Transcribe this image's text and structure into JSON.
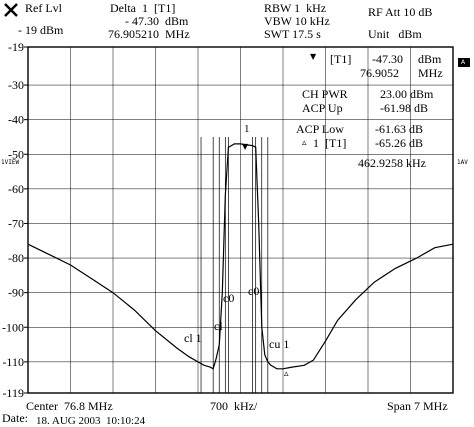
{
  "header": {
    "ref_lvl_label": "Ref Lvl",
    "ref_lvl_value": "- 19 dBm",
    "delta_label": "Delta  1  [T1]",
    "delta_level": "- 47.30  dBm",
    "delta_freq": "76.905210  MHz",
    "rbw": "RBW 1  kHz",
    "vbw": "VBW 10 kHz",
    "swt": "SWT 17.5 s",
    "rf_att": "RF Att 10 dB",
    "unit": "Unit   dBm"
  },
  "marker_panel": {
    "row1_label": "[T1]",
    "row1_level": "-47.30",
    "row1_level_unit": "dBm",
    "row1_freq": "76.9052",
    "row1_freq_unit": "MHz",
    "ch_pwr_label": "CH PWR",
    "ch_pwr_value": "23.00 dBm",
    "acp_up_label": "ACP Up",
    "acp_up_value": "-61.98 dB",
    "acp_low_label": "ACP Low",
    "acp_low_value": "-61.63 dB",
    "row5_label": "1  [T1]",
    "row5_value": "-65.26 dB",
    "row6_value": "462.9258 kHz",
    "triangle_marker": "▼",
    "delta_marker": "▵"
  },
  "side_labels": {
    "left": "1VIEW",
    "right": "1AV",
    "badge": "A"
  },
  "annotations": {
    "cl1": "cl 1",
    "cl0": "cl",
    "c0": "c0",
    "c0_right": "c0",
    "cu1": "cu 1",
    "marker1": "1"
  },
  "footer": {
    "center": "Center  76.8 MHz",
    "div": "700  kHz/",
    "span": "Span 7 MHz",
    "date_label": "Date:",
    "date_value": "18. AUG 2003  10:10:24"
  },
  "chart_data": {
    "type": "line",
    "xlabel": "",
    "ylabel": "",
    "x_unit": "MHz",
    "xlim": [
      73.3,
      80.3
    ],
    "ylim": [
      -119,
      -19
    ],
    "yticks": [
      -19,
      -30,
      -40,
      -50,
      -60,
      -70,
      -80,
      -90,
      -100,
      -110,
      -119
    ],
    "grid": true,
    "series": [
      {
        "x": [
          73.3,
          73.65,
          74.0,
          74.35,
          74.7,
          75.05,
          75.4,
          75.75,
          75.95,
          76.1,
          76.2,
          76.3,
          76.35,
          76.4,
          76.45,
          76.5,
          76.55,
          76.6,
          76.7,
          76.8,
          76.9,
          77.0,
          77.05,
          77.1,
          77.15,
          77.2,
          77.25,
          77.3,
          77.4,
          77.5,
          77.65,
          77.85,
          78.0,
          78.2,
          78.4,
          78.7,
          79.0,
          79.35,
          79.7,
          80.0,
          80.3
        ],
        "values": [
          -76,
          -79,
          -82,
          -86,
          -90,
          -95,
          -101,
          -106,
          -108.5,
          -110,
          -111,
          -111.5,
          -112,
          -109,
          -105,
          -90,
          -62,
          -48,
          -47,
          -47,
          -47.3,
          -47.5,
          -48,
          -70,
          -100,
          -108,
          -110,
          -111,
          -112,
          -112,
          -111.5,
          -111,
          -109.5,
          -104,
          -98,
          -92,
          -87,
          -83,
          -80,
          -77,
          -76
        ]
      }
    ],
    "markers": [
      {
        "label": "1",
        "x": 76.90521,
        "y": -47.3
      },
      {
        "label": "1",
        "x": 77.368,
        "y": -112.56
      }
    ]
  }
}
